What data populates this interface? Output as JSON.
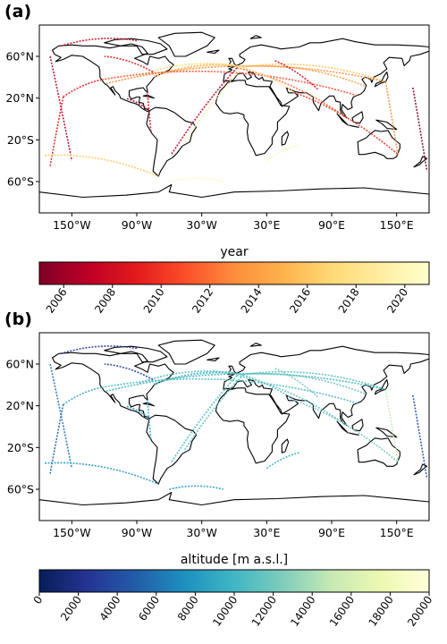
{
  "panels": [
    {
      "label": "(a)"
    },
    {
      "label": "(b)"
    }
  ],
  "chart_data": [
    {
      "type": "scatter",
      "panel": "(a)",
      "description_colorbar": "year",
      "xlabel": "",
      "ylabel": "",
      "xlim": [
        -180,
        180
      ],
      "ylim": [
        -90,
        90
      ],
      "x_ticks": [
        -150,
        -90,
        -30,
        30,
        90,
        150
      ],
      "x_tick_labels": [
        "150°W",
        "90°W",
        "30°W",
        "30°E",
        "90°E",
        "150°E"
      ],
      "y_ticks": [
        60,
        20,
        -20,
        -60
      ],
      "y_tick_labels": [
        "60°N",
        "20°N",
        "20°S",
        "60°S"
      ],
      "colorbar": {
        "label": "year",
        "colormap": "YlOrRd_r",
        "range": [
          2005,
          2021
        ],
        "ticks": [
          2006,
          2008,
          2010,
          2012,
          2014,
          2016,
          2018,
          2020
        ],
        "tick_labels": [
          "2006",
          "2008",
          "2010",
          "2012",
          "2014",
          "2016",
          "2018",
          "2020"
        ],
        "colors": [
          "#800026",
          "#bd0026",
          "#e31a1c",
          "#fc4e2a",
          "#fd8d3c",
          "#feb24c",
          "#fed976",
          "#ffeda0",
          "#ffffcc"
        ]
      },
      "routes": [
        {
          "from": [
            -74,
            40.7
          ],
          "to": [
            -0.5,
            51.5
          ],
          "value": 2015
        },
        {
          "from": [
            -74,
            40.7
          ],
          "to": [
            8.6,
            50.0
          ],
          "value": 2016
        },
        {
          "from": [
            -87.9,
            41.9
          ],
          "to": [
            -0.5,
            51.5
          ],
          "value": 2017
        },
        {
          "from": [
            -118.4,
            33.9
          ],
          "to": [
            139.8,
            35.6
          ],
          "value": 2013
        },
        {
          "from": [
            -122.4,
            37.6
          ],
          "to": [
            114.0,
            22.3
          ],
          "value": 2011
        },
        {
          "from": [
            -122.4,
            37.6
          ],
          "to": [
            -157.9,
            21.3
          ],
          "value": 2009
        },
        {
          "from": [
            8.6,
            50.0
          ],
          "to": [
            121.8,
            31.1
          ],
          "value": 2014
        },
        {
          "from": [
            8.6,
            50.0
          ],
          "to": [
            139.8,
            35.6
          ],
          "value": 2016
        },
        {
          "from": [
            2.5,
            49.0
          ],
          "to": [
            103.9,
            1.3
          ],
          "value": 2012
        },
        {
          "from": [
            -0.5,
            51.5
          ],
          "to": [
            55.4,
            25.3
          ],
          "value": 2018
        },
        {
          "from": [
            55.4,
            25.3
          ],
          "to": [
            151.2,
            -33.9
          ],
          "value": 2010
        },
        {
          "from": [
            8.6,
            50.0
          ],
          "to": [
            -46.5,
            -23.4
          ],
          "value": 2019
        },
        {
          "from": [
            2.5,
            49.0
          ],
          "to": [
            -58.5,
            -34.8
          ],
          "value": 2007
        },
        {
          "from": [
            -80.3,
            25.8
          ],
          "to": [
            -77.0,
            -12.0
          ],
          "value": 2008
        },
        {
          "from": [
            -99.1,
            19.4
          ],
          "to": [
            -79.4,
            8.9
          ],
          "value": 2006
        },
        {
          "from": [
            -157.9,
            21.3
          ],
          "to": [
            -170,
            -45
          ],
          "value": 2009
        },
        {
          "from": [
            -170,
            60
          ],
          "to": [
            -150,
            -40
          ],
          "value": 2007
        },
        {
          "from": [
            -60,
            -60
          ],
          "to": [
            -10,
            -60
          ],
          "value": 2020
        },
        {
          "from": [
            -175,
            -35
          ],
          "to": [
            -70,
            -55
          ],
          "value": 2016
        },
        {
          "from": [
            139.8,
            35.6
          ],
          "to": [
            151.2,
            -33.9
          ],
          "value": 2013
        },
        {
          "from": [
            -75,
            45
          ],
          "to": [
            -120,
            60
          ],
          "value": 2009
        },
        {
          "from": [
            37.6,
            55.8
          ],
          "to": [
            77.1,
            28.6
          ],
          "value": 2008
        },
        {
          "from": [
            -160,
            70
          ],
          "to": [
            -90,
            75
          ],
          "value": 2008
        },
        {
          "from": [
            30,
            -40
          ],
          "to": [
            60,
            -25
          ],
          "value": 2020
        },
        {
          "from": [
            165,
            30
          ],
          "to": [
            178,
            -50
          ],
          "value": 2005
        }
      ]
    },
    {
      "type": "scatter",
      "panel": "(b)",
      "xlabel": "",
      "ylabel": "",
      "xlim": [
        -180,
        180
      ],
      "ylim": [
        -90,
        90
      ],
      "x_ticks": [
        -150,
        -90,
        -30,
        30,
        90,
        150
      ],
      "x_tick_labels": [
        "150°W",
        "90°W",
        "30°W",
        "30°E",
        "90°E",
        "150°E"
      ],
      "y_ticks": [
        60,
        20,
        -20,
        -60
      ],
      "y_tick_labels": [
        "60°N",
        "20°N",
        "20°S",
        "60°S"
      ],
      "colorbar": {
        "label": "altitude [m a.s.l.]",
        "colormap": "YlGnBu_r",
        "range": [
          0,
          20000
        ],
        "ticks": [
          0,
          2000,
          4000,
          6000,
          8000,
          10000,
          12000,
          14000,
          16000,
          18000,
          20000
        ],
        "tick_labels": [
          "0",
          "2000",
          "4000",
          "6000",
          "8000",
          "10000",
          "12000",
          "14000",
          "16000",
          "18000",
          "20000"
        ],
        "colors": [
          "#081d58",
          "#253494",
          "#225ea8",
          "#1d91c0",
          "#41b6c4",
          "#7fcdbb",
          "#c7e9b4",
          "#edf8b1",
          "#ffffd9"
        ]
      },
      "routes": [
        {
          "from": [
            -74,
            40.7
          ],
          "to": [
            -0.5,
            51.5
          ],
          "value": 11000
        },
        {
          "from": [
            -74,
            40.7
          ],
          "to": [
            8.6,
            50.0
          ],
          "value": 11000
        },
        {
          "from": [
            -87.9,
            41.9
          ],
          "to": [
            -0.5,
            51.5
          ],
          "value": 10500
        },
        {
          "from": [
            -118.4,
            33.9
          ],
          "to": [
            139.8,
            35.6
          ],
          "value": 10000
        },
        {
          "from": [
            -122.4,
            37.6
          ],
          "to": [
            114.0,
            22.3
          ],
          "value": 10500
        },
        {
          "from": [
            -122.4,
            37.6
          ],
          "to": [
            -157.9,
            21.3
          ],
          "value": 9000
        },
        {
          "from": [
            8.6,
            50.0
          ],
          "to": [
            121.8,
            31.1
          ],
          "value": 11500
        },
        {
          "from": [
            8.6,
            50.0
          ],
          "to": [
            139.8,
            35.6
          ],
          "value": 11000
        },
        {
          "from": [
            2.5,
            49.0
          ],
          "to": [
            103.9,
            1.3
          ],
          "value": 11500
        },
        {
          "from": [
            -0.5,
            51.5
          ],
          "to": [
            55.4,
            25.3
          ],
          "value": 11000
        },
        {
          "from": [
            55.4,
            25.3
          ],
          "to": [
            151.2,
            -33.9
          ],
          "value": 12000
        },
        {
          "from": [
            8.6,
            50.0
          ],
          "to": [
            -46.5,
            -23.4
          ],
          "value": 11000
        },
        {
          "from": [
            2.5,
            49.0
          ],
          "to": [
            -58.5,
            -34.8
          ],
          "value": 10500
        },
        {
          "from": [
            -80.3,
            25.8
          ],
          "to": [
            -77.0,
            -12.0
          ],
          "value": 9000
        },
        {
          "from": [
            -99.1,
            19.4
          ],
          "to": [
            -79.4,
            8.9
          ],
          "value": 7000
        },
        {
          "from": [
            -157.9,
            21.3
          ],
          "to": [
            -170,
            -45
          ],
          "value": 5000
        },
        {
          "from": [
            -170,
            60
          ],
          "to": [
            -150,
            -40
          ],
          "value": 6000
        },
        {
          "from": [
            -60,
            -60
          ],
          "to": [
            -10,
            -60
          ],
          "value": 8000
        },
        {
          "from": [
            -175,
            -35
          ],
          "to": [
            -70,
            -55
          ],
          "value": 8000
        },
        {
          "from": [
            139.8,
            35.6
          ],
          "to": [
            151.2,
            -33.9
          ],
          "value": 15000
        },
        {
          "from": [
            -75,
            45
          ],
          "to": [
            -120,
            60
          ],
          "value": 3000
        },
        {
          "from": [
            37.6,
            55.8
          ],
          "to": [
            77.1,
            28.6
          ],
          "value": 12000
        },
        {
          "from": [
            -160,
            70
          ],
          "to": [
            -90,
            75
          ],
          "value": 2500
        },
        {
          "from": [
            30,
            -40
          ],
          "to": [
            60,
            -25
          ],
          "value": 9500
        },
        {
          "from": [
            165,
            30
          ],
          "to": [
            178,
            -50
          ],
          "value": 4000
        }
      ]
    }
  ]
}
